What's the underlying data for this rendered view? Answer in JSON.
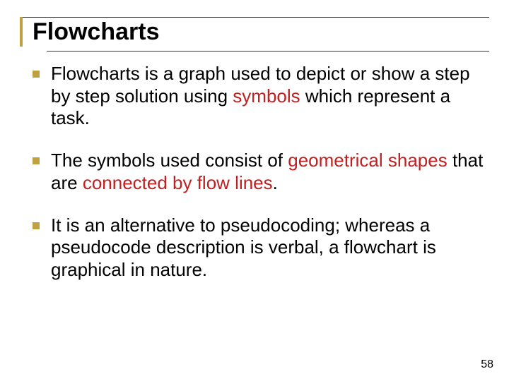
{
  "title": "Flowcharts",
  "bullets": [
    {
      "segments": [
        {
          "text": "Flowcharts is a graph used to depict or show a step by step solution using ",
          "hl": false
        },
        {
          "text": "symbols",
          "hl": true
        },
        {
          "text": " which represent a task.",
          "hl": false
        }
      ]
    },
    {
      "segments": [
        {
          "text": "The symbols used consist of ",
          "hl": false
        },
        {
          "text": "geometrical shapes ",
          "hl": true
        },
        {
          "text": "that are ",
          "hl": false
        },
        {
          "text": "connected by flow lines",
          "hl": true
        },
        {
          "text": ".",
          "hl": false
        }
      ]
    },
    {
      "segments": [
        {
          "text": "It is an alternative to pseudocoding; whereas a pseudocode description is verbal, a flowchart is graphical in nature.",
          "hl": false
        }
      ]
    }
  ],
  "page_number": "58",
  "colors": {
    "accent": "#c0a040",
    "highlight": "#c02020",
    "text": "#000000",
    "background": "#ffffff",
    "rule": "#333333"
  },
  "typography": {
    "title_fontsize": 34,
    "body_fontsize": 26,
    "page_num_fontsize": 16,
    "font_family": "Arial"
  }
}
